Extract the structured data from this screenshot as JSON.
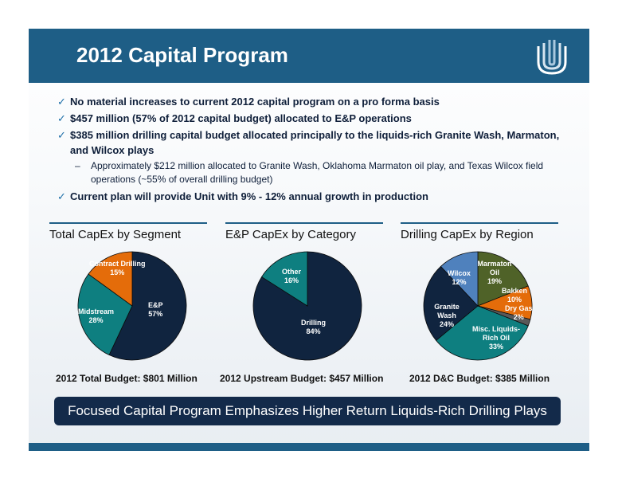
{
  "title": "2012 Capital Program",
  "bullets": [
    {
      "level": 1,
      "text": "No material increases to current 2012 capital program on a pro forma basis"
    },
    {
      "level": 1,
      "text": "$457 million (57% of 2012 capital budget) allocated to E&P operations"
    },
    {
      "level": 1,
      "text": "$385 million drilling capital budget allocated principally to the liquids-rich Granite Wash, Marmaton, and Wilcox plays"
    },
    {
      "level": 2,
      "text": "Approximately $212 million allocated to Granite Wash, Oklahoma Marmaton oil play, and Texas Wilcox field operations (~55% of overall drilling budget)"
    },
    {
      "level": 1,
      "text": "Current plan will provide Unit with 9% - 12% annual growth in production"
    }
  ],
  "chart_data": [
    {
      "type": "pie",
      "title": "Total CapEx by Segment",
      "caption": "2012 Total Budget: $801 Million",
      "slices": [
        {
          "label": "E&P",
          "value": 57,
          "pct": "57%",
          "color": "#10243f"
        },
        {
          "label": "Midstream",
          "value": 28,
          "pct": "28%",
          "color": "#0e7f80"
        },
        {
          "label": "Contract Drilling",
          "value": 15,
          "pct": "15%",
          "color": "#e46c0a"
        }
      ]
    },
    {
      "type": "pie",
      "title": "E&P CapEx by Category",
      "caption": "2012 Upstream Budget: $457 Million",
      "slices": [
        {
          "label": "Drilling",
          "value": 84,
          "pct": "84%",
          "color": "#10243f"
        },
        {
          "label": "Other",
          "value": 16,
          "pct": "16%",
          "color": "#0e7f80"
        }
      ]
    },
    {
      "type": "pie",
      "title": "Drilling CapEx by Region",
      "caption": "2012 D&C Budget: $385 Million",
      "slices": [
        {
          "label": "Marmaton Oil",
          "value": 19,
          "pct": "19%",
          "color": "#4f6228"
        },
        {
          "label": "Bakken",
          "value": 10,
          "pct": "10%",
          "color": "#e46c0a"
        },
        {
          "label": "Dry Gas",
          "value": 2,
          "pct": "2%",
          "color": "#595959"
        },
        {
          "label": "Misc. Liquids-Rich Oil",
          "value": 33,
          "pct": "33%",
          "color": "#0e7f80"
        },
        {
          "label": "Granite Wash",
          "value": 24,
          "pct": "24%",
          "color": "#10243f"
        },
        {
          "label": "Wilcox",
          "value": 12,
          "pct": "12%",
          "color": "#4f81bd"
        }
      ]
    }
  ],
  "banner": "Focused Capital Program Emphasizes Higher Return Liquids-Rich Drilling Plays"
}
